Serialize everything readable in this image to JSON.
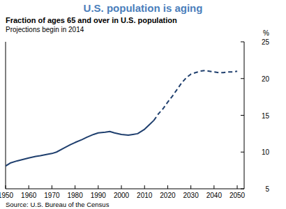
{
  "chart_data": {
    "type": "line",
    "title": "U.S. population is aging",
    "subtitle": "Fraction of ages 65 and over in U.S. population",
    "annotation": "Projections begin in 2014",
    "ylabel": "%",
    "source": "Source: U.S. Bureau of the Census",
    "xlim": [
      1950,
      2053
    ],
    "xticks": [
      1950,
      1960,
      1970,
      1980,
      1990,
      2000,
      2010,
      2020,
      2030,
      2040,
      2050
    ],
    "ylim": [
      5,
      25
    ],
    "yticks": [
      5,
      10,
      15,
      20,
      25
    ],
    "grid": false,
    "series": [
      {
        "color": "#1f3f6e",
        "line_style": "solid",
        "x": [
          1950,
          1952,
          1955,
          1960,
          1963,
          1965,
          1968,
          1970,
          1972,
          1975,
          1978,
          1980,
          1983,
          1985,
          1988,
          1990,
          1993,
          1995,
          1997,
          2000,
          2003,
          2005,
          2007,
          2010,
          2012,
          2014
        ],
        "values": [
          8.1,
          8.5,
          8.8,
          9.2,
          9.4,
          9.5,
          9.7,
          9.8,
          10.0,
          10.5,
          11.0,
          11.3,
          11.7,
          12.0,
          12.4,
          12.6,
          12.7,
          12.8,
          12.6,
          12.4,
          12.3,
          12.4,
          12.5,
          13.1,
          13.7,
          14.3
        ]
      },
      {
        "color": "#1f3f6e",
        "line_style": "dashed",
        "x": [
          2014,
          2016,
          2018,
          2020,
          2022,
          2024,
          2026,
          2028,
          2030,
          2032,
          2034,
          2036,
          2038,
          2040,
          2042,
          2044,
          2046,
          2048,
          2050
        ],
        "values": [
          14.3,
          15.2,
          15.9,
          16.8,
          17.6,
          18.5,
          19.4,
          20.1,
          20.6,
          20.8,
          21.0,
          21.1,
          21.0,
          20.9,
          20.8,
          20.8,
          20.9,
          20.9,
          21.0
        ]
      }
    ]
  }
}
